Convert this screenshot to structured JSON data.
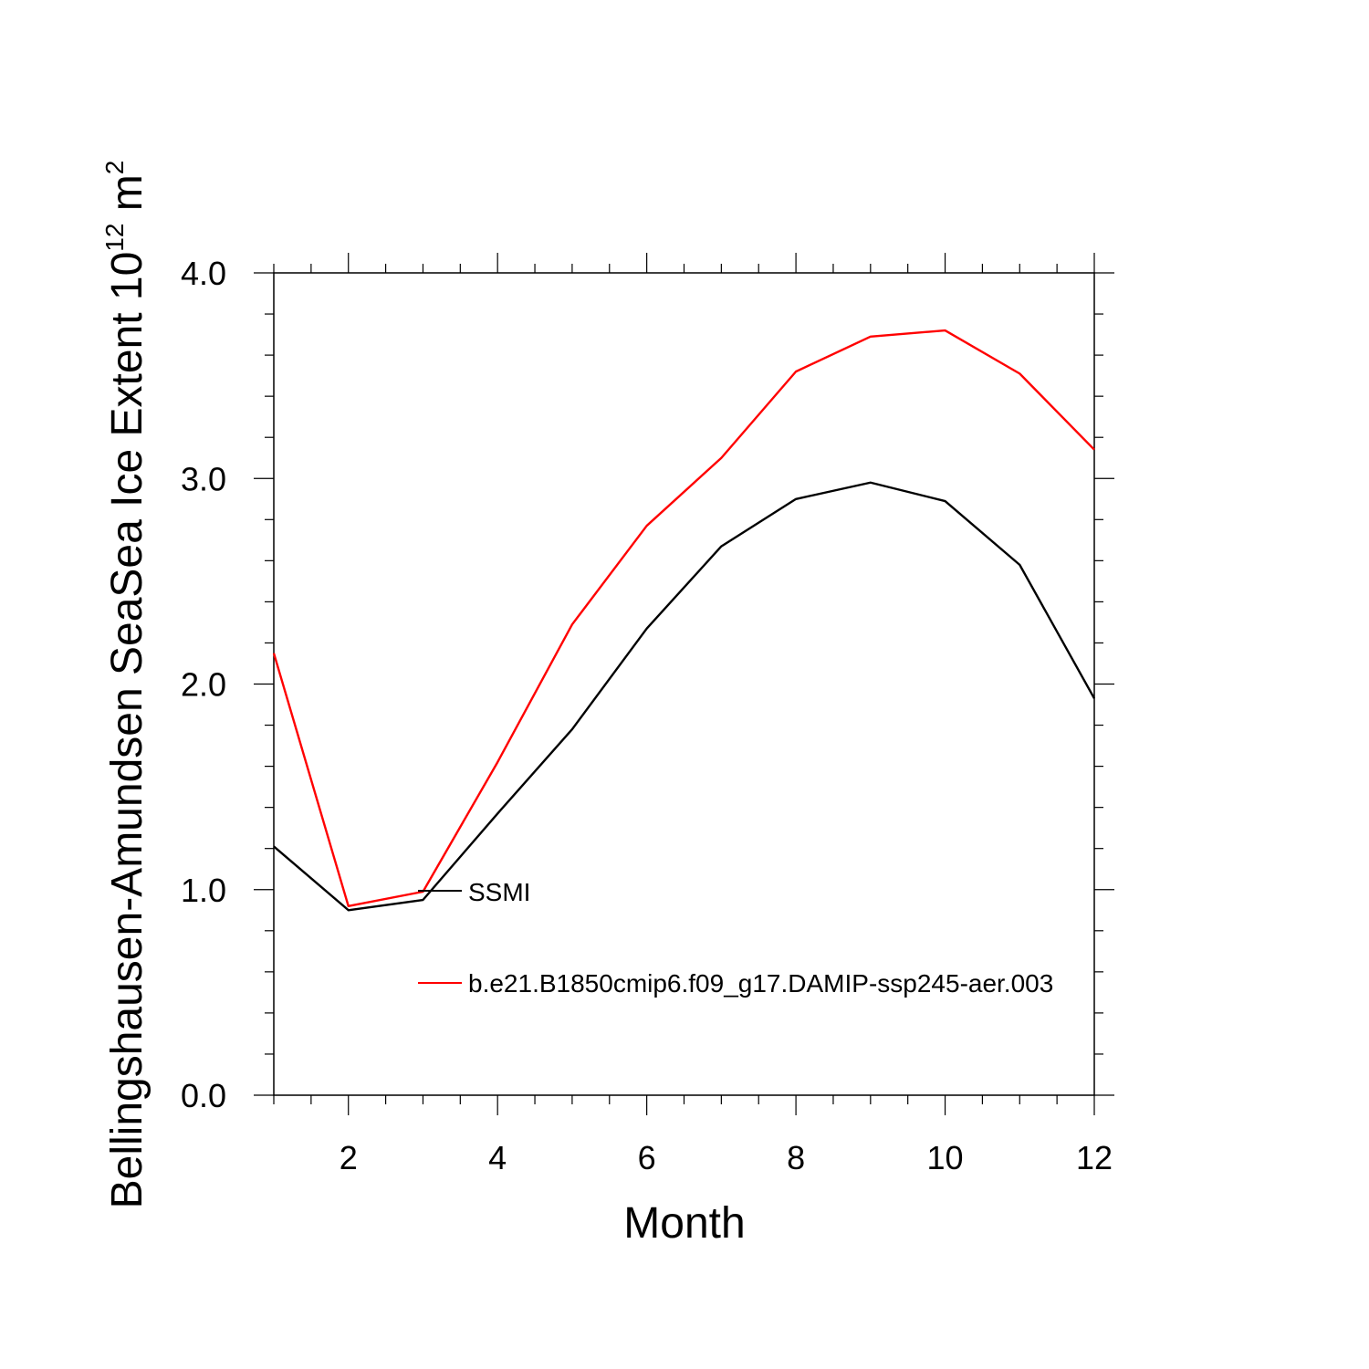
{
  "chart_data": {
    "type": "line",
    "xlabel": "Month",
    "ylabel": "Bellingshausen-Amundsen SeaSea Ice Extent 10",
    "ylabel_superscript": "12",
    "ylabel_unit": " m",
    "ylabel_unit_superscript": "2",
    "xlim": [
      1,
      12
    ],
    "ylim": [
      0,
      4
    ],
    "x_ticks": [
      2,
      4,
      6,
      8,
      10,
      12
    ],
    "x_tick_labels": [
      "2",
      "4",
      "6",
      "8",
      "10",
      "12"
    ],
    "y_ticks": [
      0,
      1,
      2,
      3,
      4
    ],
    "y_tick_labels": [
      "0.0",
      "1.0",
      "2.0",
      "3.0",
      "4.0"
    ],
    "x": [
      1,
      2,
      3,
      4,
      5,
      6,
      7,
      8,
      9,
      10,
      11,
      12
    ],
    "grid": false,
    "legend_position": "inside",
    "series": [
      {
        "name": "SSMI",
        "color": "#000000",
        "values": [
          1.21,
          0.9,
          0.95,
          1.37,
          1.78,
          2.27,
          2.67,
          2.9,
          2.98,
          2.89,
          2.58,
          1.93
        ]
      },
      {
        "name": "b.e21.B1850cmip6.f09_g17.DAMIP-ssp245-aer.003",
        "color": "#ff0000",
        "values": [
          2.15,
          0.92,
          0.99,
          1.62,
          2.29,
          2.77,
          3.1,
          3.52,
          3.69,
          3.72,
          3.51,
          3.14
        ]
      }
    ]
  }
}
